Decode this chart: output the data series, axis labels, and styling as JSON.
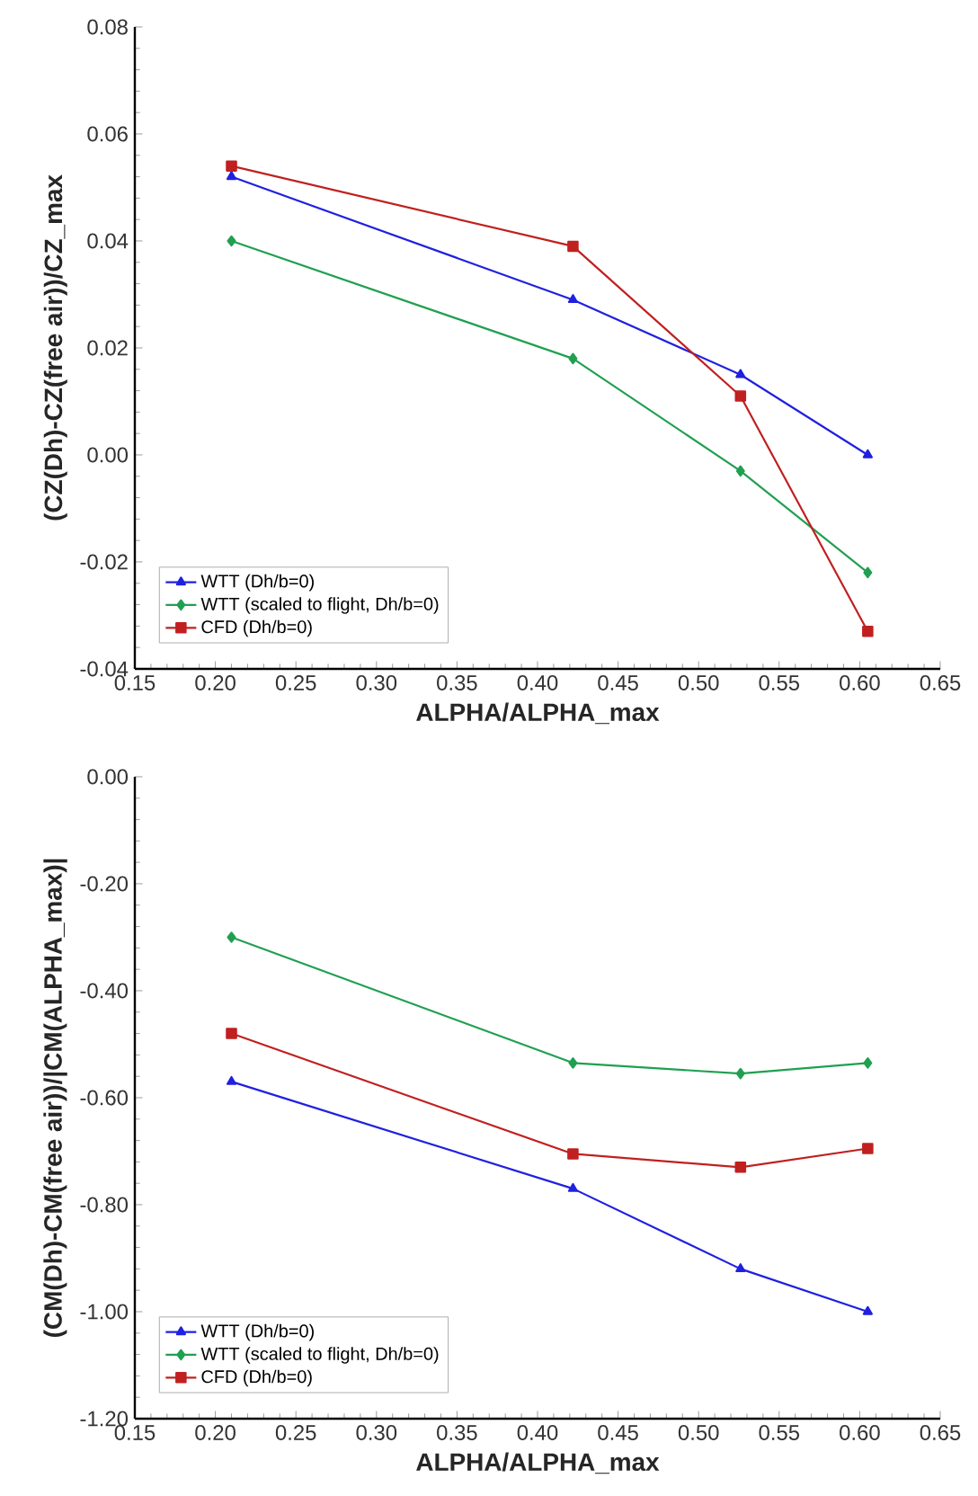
{
  "chart_data": [
    {
      "type": "line",
      "xlabel": "ALPHA/ALPHA_max",
      "ylabel": "(CZ(Dh)-CZ(free air))/CZ_max",
      "x": [
        0.21,
        0.422,
        0.526,
        0.605
      ],
      "series": [
        {
          "name": "WTT (Dh/b=0)",
          "color": "#2020e0",
          "marker": "triangle",
          "values": [
            0.052,
            0.029,
            0.015,
            0.0
          ]
        },
        {
          "name": "WTT (scaled to flight, Dh/b=0)",
          "color": "#20a050",
          "marker": "diamond",
          "values": [
            0.04,
            0.018,
            -0.003,
            -0.022
          ]
        },
        {
          "name": "CFD (Dh/b=0)",
          "color": "#c02020",
          "marker": "square",
          "values": [
            0.054,
            0.039,
            0.011,
            -0.033
          ]
        }
      ],
      "xlim": [
        0.15,
        0.65
      ],
      "ylim": [
        -0.04,
        0.08
      ],
      "xticks": [
        {
          "value": 0.15,
          "label": "0.15"
        },
        {
          "value": 0.2,
          "label": "0.20"
        },
        {
          "value": 0.25,
          "label": "0.25"
        },
        {
          "value": 0.3,
          "label": "0.30"
        },
        {
          "value": 0.35,
          "label": "0.35"
        },
        {
          "value": 0.4,
          "label": "0.40"
        },
        {
          "value": 0.45,
          "label": "0.45"
        },
        {
          "value": 0.5,
          "label": "0.50"
        },
        {
          "value": 0.55,
          "label": "0.55"
        },
        {
          "value": 0.6,
          "label": "0.60"
        },
        {
          "value": 0.65,
          "label": "0.65"
        }
      ],
      "yticks": [
        {
          "value": -0.04,
          "label": "-0.04"
        },
        {
          "value": -0.02,
          "label": "-0.02"
        },
        {
          "value": 0,
          "label": "0.00"
        },
        {
          "value": 0.02,
          "label": "0.02"
        },
        {
          "value": 0.04,
          "label": "0.04"
        },
        {
          "value": 0.06,
          "label": "0.06"
        },
        {
          "value": 0.08,
          "label": "0.08"
        }
      ],
      "grid": false,
      "legend": "bottom left"
    },
    {
      "type": "line",
      "xlabel": "ALPHA/ALPHA_max",
      "ylabel": "(CM(Dh)-CM(free air))/|CM(ALPHA_max)|",
      "x": [
        0.21,
        0.422,
        0.526,
        0.605
      ],
      "series": [
        {
          "name": "WTT (Dh/b=0)",
          "color": "#2020e0",
          "marker": "triangle",
          "values": [
            -0.57,
            -0.77,
            -0.92,
            -1.0
          ]
        },
        {
          "name": "WTT (scaled to flight, Dh/b=0)",
          "color": "#20a050",
          "marker": "diamond",
          "values": [
            -0.3,
            -0.535,
            -0.555,
            -0.535
          ]
        },
        {
          "name": "CFD (Dh/b=0)",
          "color": "#c02020",
          "marker": "square",
          "values": [
            -0.48,
            -0.705,
            -0.73,
            -0.695
          ]
        }
      ],
      "xlim": [
        0.15,
        0.65
      ],
      "ylim": [
        -1.2,
        0.0
      ],
      "xticks": [
        {
          "value": 0.15,
          "label": "0.15"
        },
        {
          "value": 0.2,
          "label": "0.20"
        },
        {
          "value": 0.25,
          "label": "0.25"
        },
        {
          "value": 0.3,
          "label": "0.30"
        },
        {
          "value": 0.35,
          "label": "0.35"
        },
        {
          "value": 0.4,
          "label": "0.40"
        },
        {
          "value": 0.45,
          "label": "0.45"
        },
        {
          "value": 0.5,
          "label": "0.50"
        },
        {
          "value": 0.55,
          "label": "0.55"
        },
        {
          "value": 0.6,
          "label": "0.60"
        },
        {
          "value": 0.65,
          "label": "0.65"
        }
      ],
      "yticks": [
        {
          "value": -1.2,
          "label": "-1.20"
        },
        {
          "value": -1.0,
          "label": "-1.00"
        },
        {
          "value": -0.8,
          "label": "-0.80"
        },
        {
          "value": -0.6,
          "label": "-0.60"
        },
        {
          "value": -0.4,
          "label": "-0.40"
        },
        {
          "value": -0.2,
          "label": "-0.20"
        },
        {
          "value": 0.0,
          "label": "0.00"
        }
      ],
      "grid": false,
      "legend": "bottom left"
    }
  ]
}
